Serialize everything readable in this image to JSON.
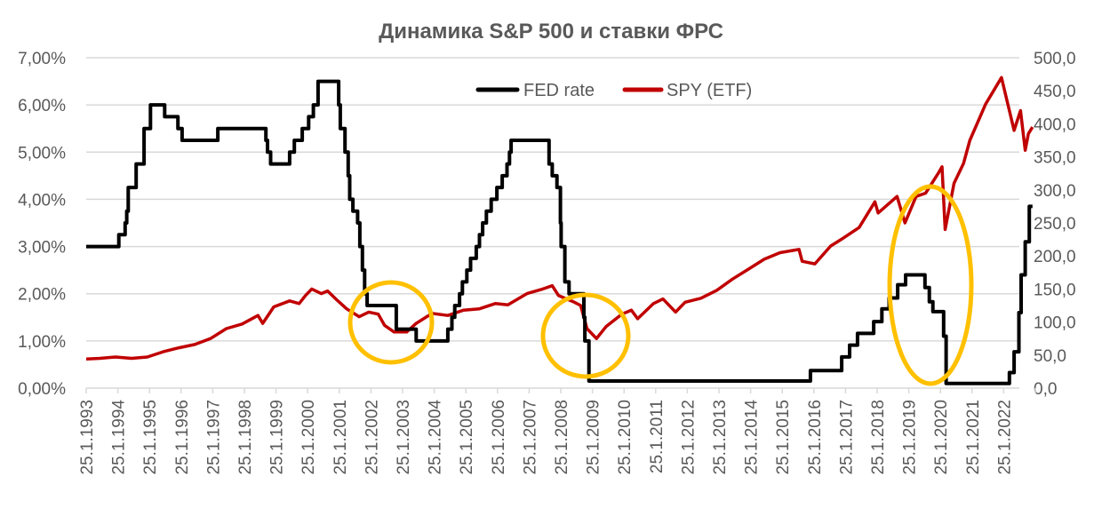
{
  "chart_data": {
    "type": "line",
    "title": "Динамика S&P 500 и ставки ФРС",
    "xlabel": "",
    "ylabel_left": "",
    "ylabel_right": "",
    "y_left_range": [
      0,
      7
    ],
    "y_right_range": [
      0,
      500
    ],
    "y_left_ticks": [
      "0,00%",
      "1,00%",
      "2,00%",
      "3,00%",
      "4,00%",
      "5,00%",
      "6,00%",
      "7,00%"
    ],
    "y_right_ticks": [
      "0,0",
      "50,0",
      "100,0",
      "150,0",
      "200,0",
      "250,0",
      "300,0",
      "350,0",
      "400,0",
      "450,0",
      "500,0"
    ],
    "x_ticks": [
      "25.1.1993",
      "25.1.1994",
      "25.1.1995",
      "25.1.1996",
      "25.1.1997",
      "25.1.1998",
      "25.1.1999",
      "25.1.2000",
      "25.1.2001",
      "25.1.2002",
      "25.1.2003",
      "25.1.2004",
      "25.1.2005",
      "25.1.2006",
      "25.1.2007",
      "25.1.2008",
      "25.1.2009",
      "25.1.2010",
      "25.1.2011",
      "25.1.2012",
      "25.1.2013",
      "25.1.2014",
      "25.1.2015",
      "25.1.2016",
      "25.1.2017",
      "25.1.2018",
      "25.1.2019",
      "25.1.2020",
      "25.1.2021",
      "25.1.2022"
    ],
    "grid": true,
    "legend": {
      "placement": "top-center",
      "entries": [
        "FED rate",
        "SPY (ETF)"
      ]
    },
    "series": [
      {
        "name": "FED rate",
        "axis": "left",
        "color": "#000000",
        "step": true,
        "points": [
          [
            1993.07,
            3.0
          ],
          [
            1994.1,
            3.25
          ],
          [
            1994.3,
            3.5
          ],
          [
            1994.35,
            3.75
          ],
          [
            1994.4,
            4.25
          ],
          [
            1994.65,
            4.75
          ],
          [
            1994.9,
            5.5
          ],
          [
            1995.1,
            6.0
          ],
          [
            1995.55,
            5.75
          ],
          [
            1995.97,
            5.5
          ],
          [
            1996.1,
            5.25
          ],
          [
            1997.23,
            5.5
          ],
          [
            1998.75,
            5.25
          ],
          [
            1998.8,
            5.0
          ],
          [
            1998.9,
            4.75
          ],
          [
            1999.5,
            5.0
          ],
          [
            1999.65,
            5.25
          ],
          [
            1999.9,
            5.5
          ],
          [
            2000.1,
            5.75
          ],
          [
            2000.25,
            6.0
          ],
          [
            2000.4,
            6.5
          ],
          [
            2001.05,
            6.0
          ],
          [
            2001.1,
            5.5
          ],
          [
            2001.25,
            5.0
          ],
          [
            2001.35,
            4.5
          ],
          [
            2001.4,
            4.0
          ],
          [
            2001.5,
            3.75
          ],
          [
            2001.65,
            3.5
          ],
          [
            2001.72,
            3.0
          ],
          [
            2001.8,
            2.5
          ],
          [
            2001.87,
            2.0
          ],
          [
            2001.95,
            1.75
          ],
          [
            2002.87,
            1.25
          ],
          [
            2003.5,
            1.0
          ],
          [
            2004.5,
            1.25
          ],
          [
            2004.63,
            1.5
          ],
          [
            2004.72,
            1.75
          ],
          [
            2004.87,
            2.0
          ],
          [
            2004.96,
            2.25
          ],
          [
            2005.1,
            2.5
          ],
          [
            2005.22,
            2.75
          ],
          [
            2005.4,
            3.0
          ],
          [
            2005.5,
            3.25
          ],
          [
            2005.6,
            3.5
          ],
          [
            2005.72,
            3.75
          ],
          [
            2005.87,
            4.0
          ],
          [
            2006.05,
            4.25
          ],
          [
            2006.22,
            4.5
          ],
          [
            2006.37,
            4.75
          ],
          [
            2006.45,
            5.0
          ],
          [
            2006.5,
            5.25
          ],
          [
            2007.7,
            4.75
          ],
          [
            2007.8,
            4.5
          ],
          [
            2007.95,
            4.25
          ],
          [
            2008.06,
            3.5
          ],
          [
            2008.08,
            3.0
          ],
          [
            2008.2,
            2.25
          ],
          [
            2008.33,
            2.0
          ],
          [
            2008.8,
            1.5
          ],
          [
            2008.83,
            1.0
          ],
          [
            2008.96,
            0.15
          ],
          [
            2015.96,
            0.37
          ],
          [
            2016.95,
            0.66
          ],
          [
            2017.2,
            0.91
          ],
          [
            2017.45,
            1.16
          ],
          [
            2017.96,
            1.41
          ],
          [
            2018.22,
            1.68
          ],
          [
            2018.45,
            1.91
          ],
          [
            2018.72,
            2.19
          ],
          [
            2018.97,
            2.4
          ],
          [
            2019.58,
            2.13
          ],
          [
            2019.72,
            1.83
          ],
          [
            2019.83,
            1.62
          ],
          [
            2020.17,
            1.1
          ],
          [
            2020.25,
            0.1
          ],
          [
            2022.25,
            0.33
          ],
          [
            2022.4,
            0.77
          ],
          [
            2022.55,
            1.6
          ],
          [
            2022.62,
            2.4
          ],
          [
            2022.75,
            3.1
          ],
          [
            2022.88,
            3.85
          ],
          [
            2022.98,
            3.85
          ]
        ]
      },
      {
        "name": "SPY (ETF)",
        "axis": "right",
        "color": "#C00000",
        "step": false,
        "points": [
          [
            1993.07,
            44
          ],
          [
            1993.5,
            45
          ],
          [
            1994,
            47
          ],
          [
            1994.5,
            45
          ],
          [
            1995,
            47
          ],
          [
            1995.5,
            55
          ],
          [
            1996,
            61
          ],
          [
            1996.5,
            66
          ],
          [
            1997,
            75
          ],
          [
            1997.5,
            90
          ],
          [
            1998,
            97
          ],
          [
            1998.5,
            110
          ],
          [
            1998.65,
            98
          ],
          [
            1999,
            123
          ],
          [
            1999.5,
            132
          ],
          [
            1999.8,
            128
          ],
          [
            2000,
            140
          ],
          [
            2000.2,
            150
          ],
          [
            2000.5,
            143
          ],
          [
            2000.7,
            147
          ],
          [
            2001,
            133
          ],
          [
            2001.3,
            120
          ],
          [
            2001.7,
            108
          ],
          [
            2002,
            115
          ],
          [
            2002.3,
            112
          ],
          [
            2002.5,
            95
          ],
          [
            2002.8,
            85
          ],
          [
            2003.2,
            85
          ],
          [
            2003.5,
            98
          ],
          [
            2004,
            113
          ],
          [
            2004.5,
            110
          ],
          [
            2005,
            118
          ],
          [
            2005.5,
            120
          ],
          [
            2006,
            128
          ],
          [
            2006.4,
            126
          ],
          [
            2007,
            143
          ],
          [
            2007.5,
            150
          ],
          [
            2007.8,
            155
          ],
          [
            2008,
            140
          ],
          [
            2008.5,
            130
          ],
          [
            2008.7,
            125
          ],
          [
            2008.9,
            90
          ],
          [
            2009.2,
            75
          ],
          [
            2009.5,
            93
          ],
          [
            2010,
            112
          ],
          [
            2010.3,
            118
          ],
          [
            2010.5,
            105
          ],
          [
            2011,
            128
          ],
          [
            2011.3,
            135
          ],
          [
            2011.7,
            115
          ],
          [
            2012,
            130
          ],
          [
            2012.5,
            136
          ],
          [
            2013,
            148
          ],
          [
            2013.5,
            165
          ],
          [
            2014,
            180
          ],
          [
            2014.5,
            195
          ],
          [
            2015,
            205
          ],
          [
            2015.6,
            210
          ],
          [
            2015.7,
            192
          ],
          [
            2016.1,
            188
          ],
          [
            2016.6,
            215
          ],
          [
            2017,
            227
          ],
          [
            2017.5,
            243
          ],
          [
            2018,
            282
          ],
          [
            2018.1,
            265
          ],
          [
            2018.7,
            290
          ],
          [
            2018.95,
            250
          ],
          [
            2019.3,
            290
          ],
          [
            2019.6,
            295
          ],
          [
            2020,
            325
          ],
          [
            2020.12,
            335
          ],
          [
            2020.22,
            240
          ],
          [
            2020.5,
            310
          ],
          [
            2020.8,
            340
          ],
          [
            2021,
            375
          ],
          [
            2021.5,
            430
          ],
          [
            2022,
            470
          ],
          [
            2022.2,
            430
          ],
          [
            2022.4,
            390
          ],
          [
            2022.6,
            420
          ],
          [
            2022.75,
            360
          ],
          [
            2022.85,
            385
          ],
          [
            2022.98,
            395
          ]
        ]
      }
    ]
  }
}
